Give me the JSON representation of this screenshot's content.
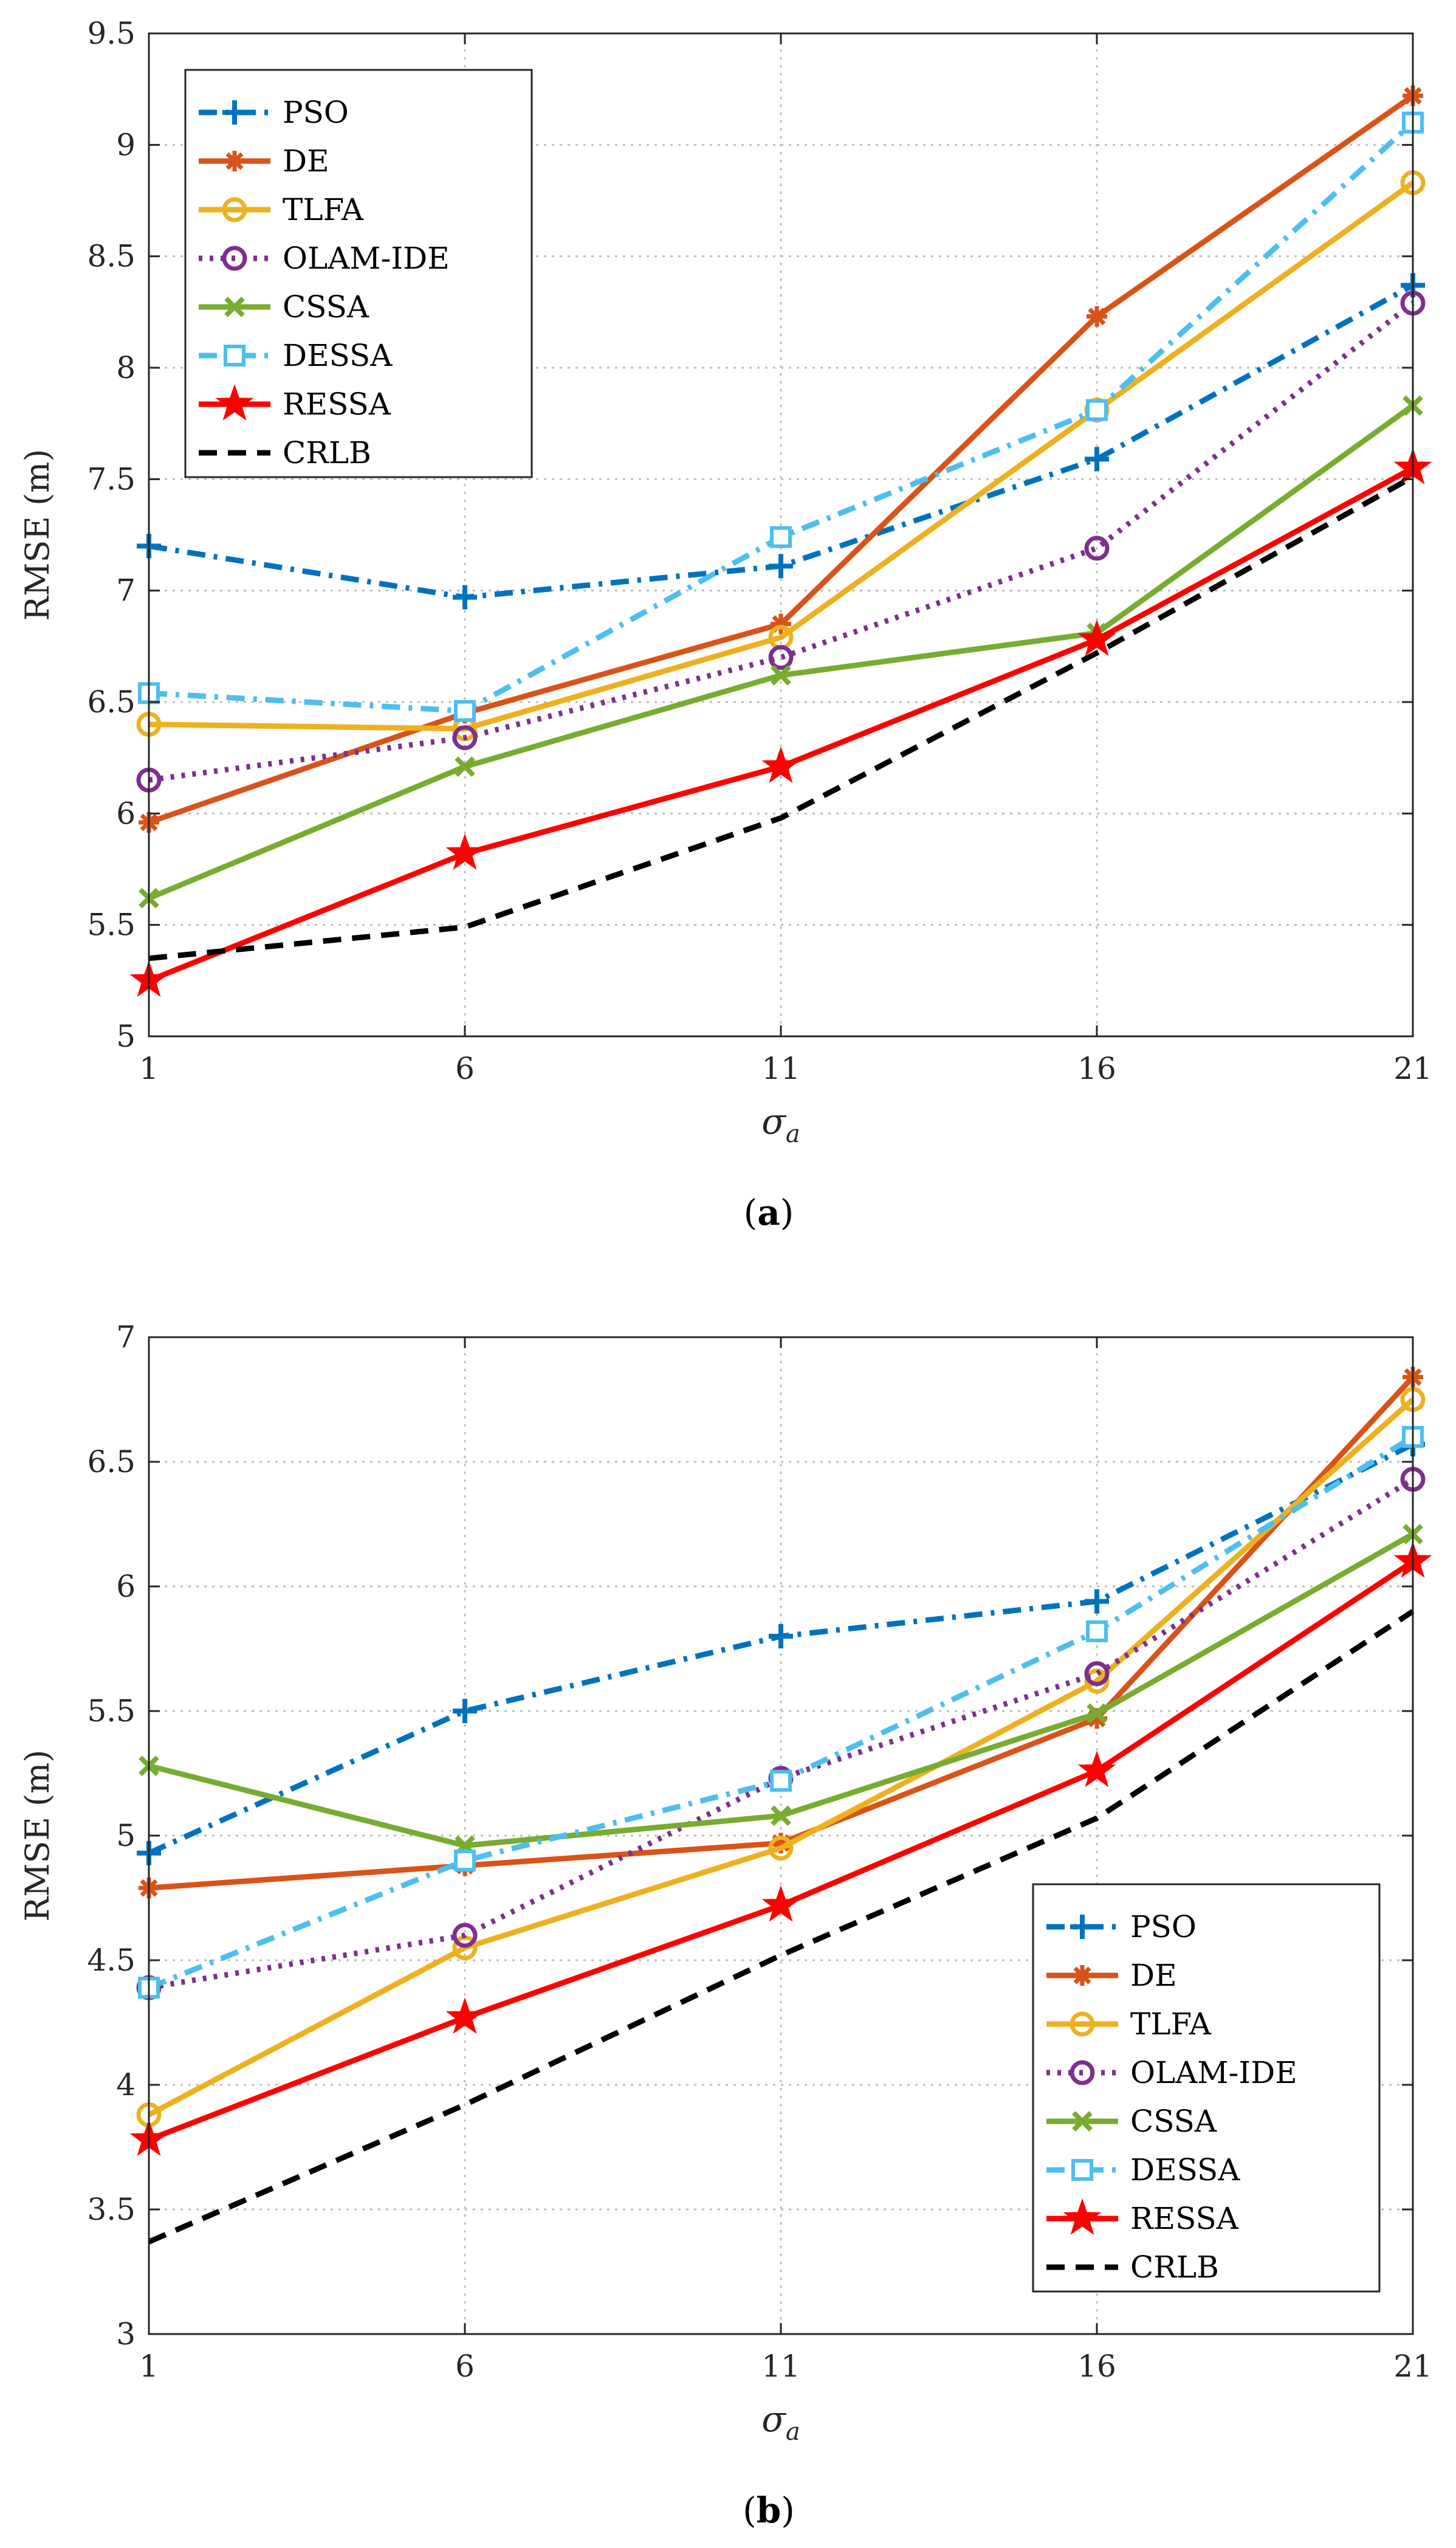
{
  "chart_data": [
    {
      "type": "line",
      "caption": "(a)",
      "caption_letter": "a",
      "xlabel_symbol": "σ",
      "xlabel_subscript": "a",
      "ylabel": "RMSE (m)",
      "x": [
        1,
        6,
        11,
        16,
        21
      ],
      "xticks": [
        "1",
        "6",
        "11",
        "16",
        "21"
      ],
      "ylim": [
        5,
        9.5
      ],
      "yticks": [
        "5",
        "5.5",
        "6",
        "6.5",
        "7",
        "7.5",
        "8",
        "8.5",
        "9",
        "9.5"
      ],
      "grid": true,
      "legend_position": "top-left",
      "series": [
        {
          "name": "PSO",
          "values": [
            7.2,
            6.97,
            7.11,
            7.59,
            8.37
          ]
        },
        {
          "name": "DE",
          "values": [
            5.96,
            6.45,
            6.85,
            8.23,
            9.22
          ]
        },
        {
          "name": "TLFA",
          "values": [
            6.4,
            6.38,
            6.79,
            7.81,
            8.83
          ]
        },
        {
          "name": "OLAM-IDE",
          "values": [
            6.15,
            6.34,
            6.7,
            7.19,
            8.29
          ]
        },
        {
          "name": "CSSA",
          "values": [
            5.62,
            6.21,
            6.62,
            6.81,
            7.83
          ]
        },
        {
          "name": "DESSA",
          "values": [
            6.54,
            6.46,
            7.24,
            7.81,
            9.1
          ]
        },
        {
          "name": "RESSA",
          "values": [
            5.25,
            5.82,
            6.21,
            6.78,
            7.55
          ]
        },
        {
          "name": "CRLB",
          "values": [
            5.35,
            5.49,
            5.98,
            6.72,
            7.51
          ]
        }
      ]
    },
    {
      "type": "line",
      "caption": "(b)",
      "caption_letter": "b",
      "xlabel_symbol": "σ",
      "xlabel_subscript": "a",
      "ylabel": "RMSE (m)",
      "x": [
        1,
        6,
        11,
        16,
        21
      ],
      "xticks": [
        "1",
        "6",
        "11",
        "16",
        "21"
      ],
      "ylim": [
        3,
        7
      ],
      "yticks": [
        "3",
        "3.5",
        "4",
        "4.5",
        "5",
        "5.5",
        "6",
        "6.5",
        "7"
      ],
      "grid": true,
      "legend_position": "bottom-right",
      "series": [
        {
          "name": "PSO",
          "values": [
            4.93,
            5.5,
            5.8,
            5.94,
            6.57
          ]
        },
        {
          "name": "DE",
          "values": [
            4.79,
            4.88,
            4.97,
            5.47,
            6.84
          ]
        },
        {
          "name": "TLFA",
          "values": [
            3.88,
            4.55,
            4.95,
            5.62,
            6.75
          ]
        },
        {
          "name": "OLAM-IDE",
          "values": [
            4.39,
            4.6,
            5.23,
            5.65,
            6.43
          ]
        },
        {
          "name": "CSSA",
          "values": [
            5.28,
            4.96,
            5.08,
            5.49,
            6.21
          ]
        },
        {
          "name": "DESSA",
          "values": [
            4.39,
            4.9,
            5.22,
            5.82,
            6.6
          ]
        },
        {
          "name": "RESSA",
          "values": [
            3.78,
            4.27,
            4.72,
            5.26,
            6.1
          ]
        },
        {
          "name": "CRLB",
          "values": [
            3.37,
            3.92,
            4.52,
            5.07,
            5.9
          ]
        }
      ]
    }
  ],
  "series_style": {
    "PSO": {
      "color": "#0072BD",
      "dash": "dashdot",
      "marker": "plus"
    },
    "DE": {
      "color": "#D95319",
      "dash": "solid",
      "marker": "asterisk"
    },
    "TLFA": {
      "color": "#EDB120",
      "dash": "solid",
      "marker": "circle"
    },
    "OLAM-IDE": {
      "color": "#7E2F8E",
      "dash": "dotted",
      "marker": "circle"
    },
    "CSSA": {
      "color": "#77AC30",
      "dash": "solid",
      "marker": "x"
    },
    "DESSA": {
      "color": "#4DBEEE",
      "dash": "dashdot",
      "marker": "square"
    },
    "RESSA": {
      "color": "#FF0000",
      "dash": "solid",
      "marker": "star"
    },
    "CRLB": {
      "color": "#000000",
      "dash": "dashed",
      "marker": "none"
    }
  }
}
